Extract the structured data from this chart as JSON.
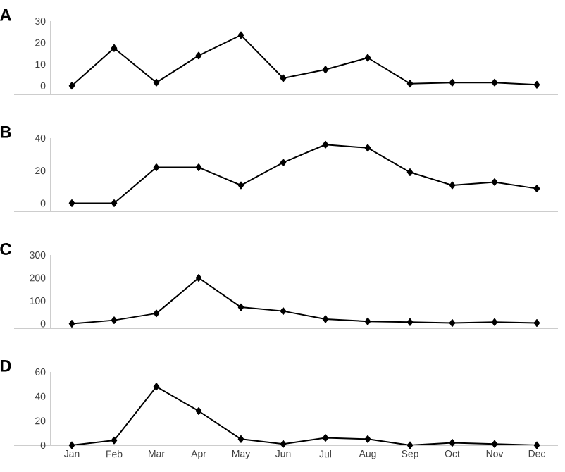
{
  "chart_data": [
    {
      "type": "line",
      "title": "A",
      "categories": [
        null,
        null,
        null,
        null,
        null,
        null,
        null,
        null,
        null,
        null,
        null,
        null
      ],
      "values": [
        0,
        17.5,
        1.5,
        14,
        23.5,
        3.5,
        7.5,
        13,
        1,
        1.5,
        1.5,
        0.5
      ],
      "color": "#000000",
      "ylim": [
        -4,
        30
      ],
      "yticks": [
        0,
        10,
        20,
        30
      ],
      "marker": "diamond",
      "tick_labels": "y"
    },
    {
      "type": "line",
      "title": "B",
      "categories": [
        null,
        null,
        null,
        null,
        null,
        null,
        null,
        null,
        null,
        null,
        null,
        null
      ],
      "values": [
        0,
        0,
        22,
        22,
        11,
        25,
        36,
        34,
        19,
        11,
        13,
        9
      ],
      "color": "#000000",
      "ylim": [
        -5,
        40
      ],
      "yticks": [
        0,
        20,
        40
      ],
      "marker": "diamond",
      "tick_labels": "y"
    },
    {
      "type": "line",
      "title": "C",
      "categories": [
        null,
        null,
        null,
        null,
        null,
        null,
        null,
        null,
        null,
        null,
        null,
        null
      ],
      "values": [
        0,
        15,
        45,
        200,
        72,
        55,
        20,
        10,
        7,
        3,
        7,
        3
      ],
      "color": "#000000",
      "ylim": [
        -20,
        300
      ],
      "yticks": [
        0,
        100,
        200,
        300
      ],
      "marker": "diamond",
      "tick_labels": "y"
    },
    {
      "type": "line",
      "title": "D",
      "categories": [
        "Jan",
        "Feb",
        "Mar",
        "Apr",
        "May",
        "Jun",
        "Jul",
        "Aug",
        "Sep",
        "Oct",
        "Nov",
        "Dec"
      ],
      "values": [
        0,
        4,
        48,
        28,
        5,
        1,
        6,
        5,
        0,
        2,
        1,
        0
      ],
      "color": "#000000",
      "ylim": [
        0,
        60
      ],
      "yticks": [
        0,
        20,
        40,
        60
      ],
      "marker": "diamond"
    }
  ]
}
